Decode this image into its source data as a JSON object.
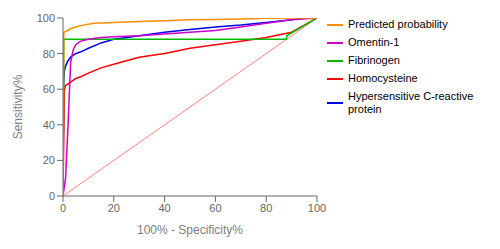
{
  "chart_data": {
    "type": "line",
    "xlabel": "100% - Specificity%",
    "ylabel": "Sensitivity%",
    "xlim": [
      0,
      100
    ],
    "ylim": [
      0,
      100
    ],
    "xticks": [
      0,
      20,
      40,
      60,
      80,
      100
    ],
    "yticks": [
      0,
      20,
      40,
      60,
      80,
      100
    ],
    "grid": false,
    "legend": "right",
    "reference_line": {
      "color": "#ff8080",
      "x": [
        0,
        100
      ],
      "values": [
        0,
        100
      ]
    },
    "series": [
      {
        "name": "Predicted probability",
        "color": "#FF8C00",
        "x": [
          0,
          0.3,
          0.5,
          1,
          2,
          3,
          5,
          8,
          12,
          20,
          30,
          40,
          50,
          60,
          70,
          80,
          90,
          100
        ],
        "values": [
          0,
          91,
          92,
          92.5,
          93,
          94,
          95,
          96,
          97,
          97.5,
          98,
          98.5,
          99,
          99.2,
          99.5,
          99.8,
          100,
          100
        ]
      },
      {
        "name": "Omentin-1",
        "color": "#CC00CC",
        "x": [
          0,
          0.2,
          0.5,
          1,
          2,
          3,
          4,
          5,
          7,
          10,
          15,
          20,
          30,
          40,
          50,
          60,
          70,
          80,
          90,
          100
        ],
        "values": [
          0,
          2,
          5,
          10,
          40,
          75,
          82,
          85,
          87,
          88,
          89,
          89.5,
          90,
          91,
          92,
          93,
          95,
          97,
          99,
          100
        ]
      },
      {
        "name": "Fibrinogen",
        "color": "#00BB00",
        "x": [
          0,
          0.3,
          88,
          88.1,
          100
        ],
        "values": [
          0,
          88,
          88,
          90,
          100
        ]
      },
      {
        "name": "Homocysteine",
        "color": "#FF0000",
        "x": [
          0,
          0.5,
          1,
          2,
          3,
          5,
          7,
          10,
          15,
          20,
          30,
          40,
          50,
          60,
          70,
          80,
          90,
          95,
          100
        ],
        "values": [
          0,
          59,
          62,
          63,
          64,
          66,
          67,
          69,
          72,
          74,
          78,
          80,
          83,
          85,
          87,
          89,
          92,
          96,
          100
        ]
      },
      {
        "name": "Hypersensitive C-reactive\nprotein",
        "color": "#0000EE",
        "x": [
          0,
          0.3,
          0.5,
          1,
          2,
          3,
          5,
          7,
          10,
          15,
          20,
          30,
          40,
          50,
          60,
          70,
          80,
          90,
          95,
          100
        ],
        "values": [
          0,
          65,
          70,
          73,
          76,
          78,
          80,
          81,
          83,
          86,
          88,
          90,
          92,
          93.5,
          95,
          96,
          97.5,
          99,
          100,
          100
        ]
      }
    ]
  }
}
